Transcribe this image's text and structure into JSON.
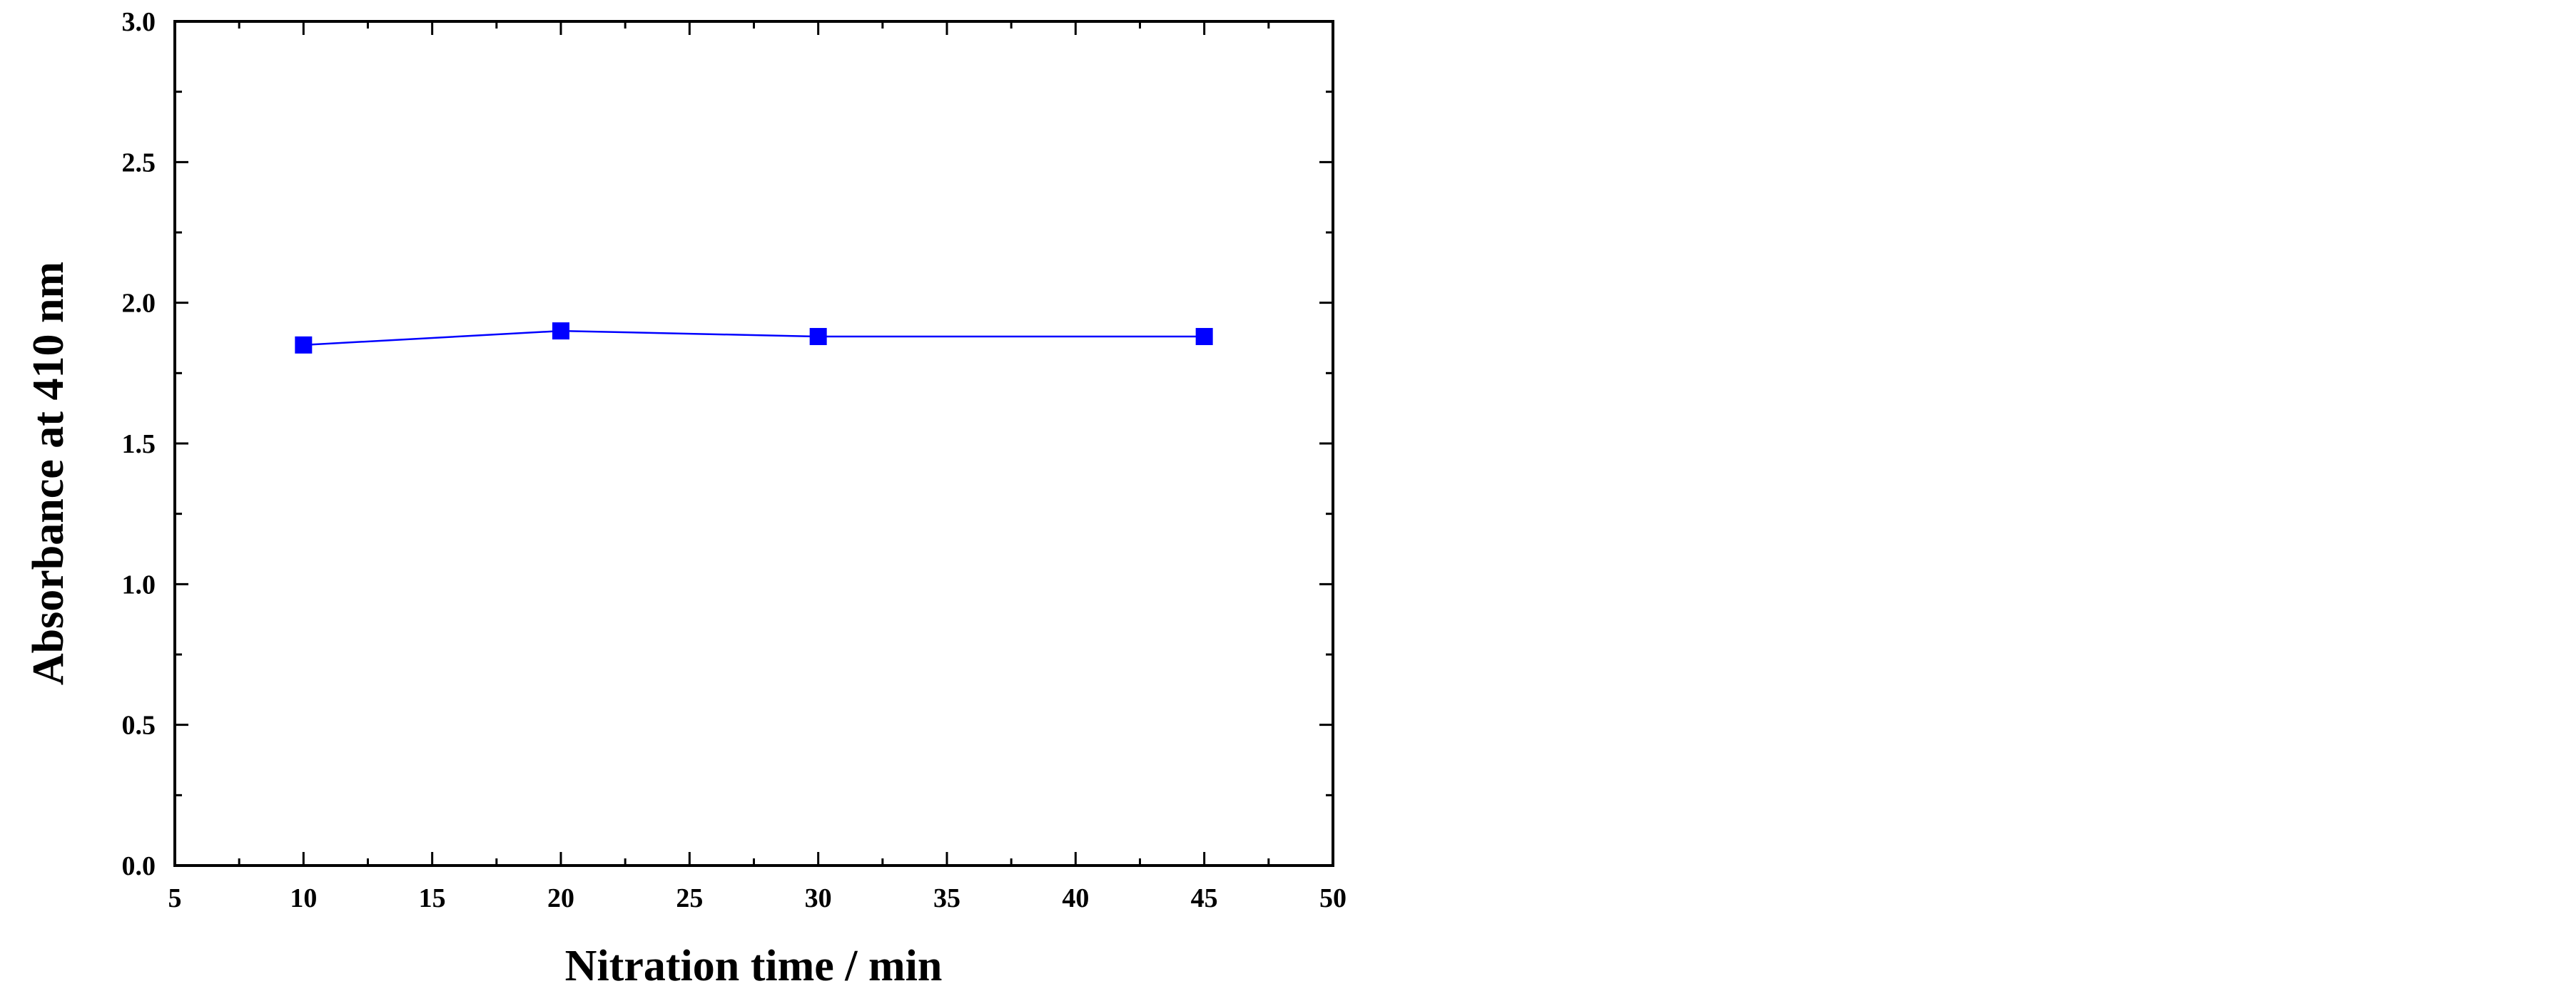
{
  "chart_data": {
    "type": "line",
    "xlabel": "Nitration time / min",
    "ylabel": "Absorbance at 410 nm",
    "x": [
      10,
      20,
      30,
      45
    ],
    "series": [
      {
        "color": "#0000ff",
        "values": [
          1.85,
          1.9,
          1.88,
          1.88
        ]
      }
    ],
    "xlim": [
      5,
      50
    ],
    "xticks": [
      5,
      10,
      15,
      20,
      25,
      30,
      35,
      40,
      45,
      50
    ],
    "xminor": [
      7.5,
      12.5,
      17.5,
      22.5,
      27.5,
      32.5,
      37.5,
      42.5,
      47.5
    ],
    "ylim": [
      0,
      3
    ],
    "yticks": [
      {
        "value": 0,
        "label": "0.0"
      },
      0.5,
      {
        "value": 1,
        "label": "1.0"
      },
      1.5,
      {
        "value": 2,
        "label": "2.0"
      },
      2.5,
      {
        "value": 3,
        "label": "3.0"
      }
    ],
    "yminor": [
      0.25,
      0.75,
      1.25,
      1.75,
      2.25,
      2.75
    ],
    "grid": false
  }
}
